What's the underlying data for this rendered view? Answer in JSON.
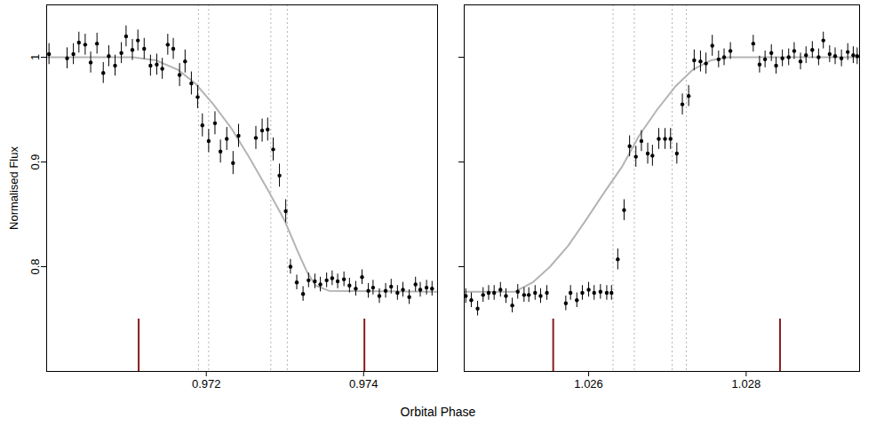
{
  "chart_data": {
    "type": "scatter",
    "xlabel": "Orbital Phase",
    "ylabel": "Normalised Flux",
    "ylim": [
      0.7,
      1.05
    ],
    "yticks": [
      0.8,
      0.9,
      1
    ],
    "panels": [
      {
        "xlim": [
          0.96997,
          0.97494
        ],
        "xticks": [
          0.972,
          0.974
        ],
        "series": [
          {
            "type": "vline",
            "color": "#b4b4b4",
            "line_style": "dotted",
            "x": [
              0.9719,
              0.97203,
              0.97282,
              0.97303
            ]
          },
          {
            "type": "vline",
            "color": "#8b1a1a",
            "line_style": "solid",
            "x": [
              0.97114,
              0.97401
            ],
            "y_range": [
              0.7,
              0.75
            ]
          },
          {
            "type": "line",
            "color": "#b4b4b4",
            "line_style": "solid",
            "x": [
              0.96997,
              0.97107,
              0.97136,
              0.97164,
              0.97186,
              0.97209,
              0.97232,
              0.97254,
              0.97277,
              0.97299,
              0.97316,
              0.97328,
              0.97339,
              0.97356,
              0.97494
            ],
            "values": [
              1.0,
              1.0,
              0.997,
              0.988,
              0.975,
              0.955,
              0.932,
              0.905,
              0.875,
              0.845,
              0.815,
              0.795,
              0.782,
              0.777,
              0.776
            ]
          },
          {
            "type": "scatter",
            "color": "#000000",
            "marker": "circle",
            "x": [
              0.97,
              0.97023,
              0.97031,
              0.97038,
              0.97046,
              0.97053,
              0.97061,
              0.97069,
              0.97076,
              0.97084,
              0.97092,
              0.97098,
              0.97106,
              0.97113,
              0.97121,
              0.97129,
              0.97137,
              0.97144,
              0.97151,
              0.97158,
              0.97166,
              0.97173,
              0.97181,
              0.97189,
              0.97195,
              0.97203,
              0.97211,
              0.97218,
              0.97226,
              0.97234,
              0.97241,
              0.97263,
              0.97271,
              0.97278,
              0.97285,
              0.97293,
              0.97301,
              0.97307,
              0.97315,
              0.97323,
              0.9733,
              0.97338,
              0.97345,
              0.97353,
              0.9736,
              0.97367,
              0.97375,
              0.97382,
              0.9739,
              0.97398,
              0.97406,
              0.97412,
              0.9742,
              0.97428,
              0.97435,
              0.97443,
              0.9745,
              0.97458,
              0.97466,
              0.97472,
              0.9748,
              0.97487
            ],
            "values": [
              1.003,
              0.999,
              1.003,
              1.014,
              1.012,
              0.995,
              1.013,
              0.985,
              1.001,
              0.992,
              1.004,
              1.02,
              1.007,
              1.016,
              1.008,
              0.992,
              0.993,
              0.989,
              1.012,
              1.008,
              0.983,
              0.996,
              0.975,
              0.962,
              0.935,
              0.92,
              0.937,
              0.91,
              0.922,
              0.899,
              0.925,
              0.923,
              0.93,
              0.931,
              0.912,
              0.887,
              0.853,
              0.8,
              0.785,
              0.774,
              0.787,
              0.786,
              0.783,
              0.787,
              0.789,
              0.786,
              0.788,
              0.782,
              0.779,
              0.79,
              0.777,
              0.78,
              0.772,
              0.777,
              0.781,
              0.775,
              0.778,
              0.771,
              0.783,
              0.778,
              0.78,
              0.779
            ],
            "errors": [
              0.01,
              0.01,
              0.01,
              0.01,
              0.01,
              0.01,
              0.01,
              0.01,
              0.01,
              0.01,
              0.01,
              0.01,
              0.01,
              0.01,
              0.01,
              0.01,
              0.01,
              0.01,
              0.01,
              0.01,
              0.011,
              0.011,
              0.011,
              0.011,
              0.011,
              0.011,
              0.011,
              0.011,
              0.011,
              0.011,
              0.011,
              0.011,
              0.011,
              0.011,
              0.011,
              0.011,
              0.011,
              0.007,
              0.007,
              0.007,
              0.007,
              0.007,
              0.007,
              0.007,
              0.007,
              0.007,
              0.007,
              0.007,
              0.007,
              0.007,
              0.007,
              0.007,
              0.007,
              0.007,
              0.007,
              0.007,
              0.007,
              0.007,
              0.007,
              0.007,
              0.007,
              0.007
            ]
          }
        ]
      },
      {
        "xlim": [
          1.02442,
          1.02944
        ],
        "xticks": [
          1.026,
          1.028
        ],
        "tick_labels": "x",
        "series": [
          {
            "type": "vline",
            "color": "#b4b4b4",
            "line_style": "dotted",
            "x": [
              1.02631,
              1.02658,
              1.02706,
              1.02724
            ]
          },
          {
            "type": "vline",
            "color": "#8b1a1a",
            "line_style": "solid",
            "x": [
              1.02555,
              1.02843
            ],
            "y_range": [
              0.7,
              0.75
            ]
          },
          {
            "type": "line",
            "color": "#b4b4b4",
            "line_style": "solid",
            "x": [
              1.02442,
              1.02506,
              1.02529,
              1.02551,
              1.02574,
              1.02597,
              1.02619,
              1.02642,
              1.02664,
              1.02687,
              1.0271,
              1.02732,
              1.02755,
              1.02777,
              1.02944
            ],
            "values": [
              0.776,
              0.776,
              0.785,
              0.8,
              0.82,
              0.845,
              0.87,
              0.895,
              0.925,
              0.95,
              0.972,
              0.988,
              0.997,
              1.0,
              1.0
            ]
          },
          {
            "type": "scatter",
            "color": "#000000",
            "marker": "circle",
            "x": [
              1.02444,
              1.02451,
              1.02459,
              1.02466,
              1.02473,
              1.0248,
              1.02488,
              1.02495,
              1.02503,
              1.0251,
              1.02518,
              1.02524,
              1.02532,
              1.02539,
              1.02547,
              1.02571,
              1.02577,
              1.02585,
              1.02592,
              1.026,
              1.02607,
              1.02615,
              1.02623,
              1.02629,
              1.02637,
              1.02645,
              1.02652,
              1.0266,
              1.02667,
              1.02675,
              1.02681,
              1.02689,
              1.02697,
              1.02704,
              1.02712,
              1.02719,
              1.02727,
              1.02734,
              1.02742,
              1.02749,
              1.02757,
              1.02765,
              1.02772,
              1.0278,
              1.02809,
              1.02817,
              1.02824,
              1.02832,
              1.02838,
              1.02846,
              1.02854,
              1.02861,
              1.02869,
              1.02876,
              1.02884,
              1.02892,
              1.02898,
              1.02906,
              1.02913,
              1.02921,
              1.02929,
              1.02936,
              1.02941
            ],
            "values": [
              0.772,
              0.768,
              0.76,
              0.773,
              0.775,
              0.775,
              0.778,
              0.772,
              0.763,
              0.776,
              0.773,
              0.773,
              0.775,
              0.772,
              0.775,
              0.765,
              0.775,
              0.768,
              0.775,
              0.778,
              0.775,
              0.776,
              0.775,
              0.775,
              0.807,
              0.854,
              0.915,
              0.905,
              0.92,
              0.908,
              0.906,
              0.922,
              0.922,
              0.922,
              0.908,
              0.955,
              0.963,
              0.997,
              0.996,
              0.994,
              1.011,
              0.998,
              1.0,
              1.006,
              1.013,
              0.993,
              0.998,
              1.004,
              0.992,
              0.999,
              1.0,
              1.006,
              0.996,
              1.002,
              1.007,
              1.0,
              1.016,
              1.003,
              1.001,
              0.999,
              1.005,
              1.002,
              1.001
            ],
            "errors": [
              0.007,
              0.007,
              0.007,
              0.007,
              0.007,
              0.007,
              0.007,
              0.007,
              0.007,
              0.007,
              0.007,
              0.007,
              0.007,
              0.007,
              0.007,
              0.007,
              0.007,
              0.007,
              0.007,
              0.007,
              0.007,
              0.007,
              0.007,
              0.007,
              0.01,
              0.01,
              0.01,
              0.01,
              0.01,
              0.01,
              0.01,
              0.01,
              0.01,
              0.01,
              0.01,
              0.01,
              0.01,
              0.01,
              0.01,
              0.01,
              0.01,
              0.008,
              0.008,
              0.008,
              0.008,
              0.008,
              0.008,
              0.008,
              0.008,
              0.008,
              0.008,
              0.008,
              0.008,
              0.008,
              0.008,
              0.008,
              0.008,
              0.008,
              0.008,
              0.008,
              0.008,
              0.008,
              0.008
            ]
          }
        ]
      }
    ]
  }
}
